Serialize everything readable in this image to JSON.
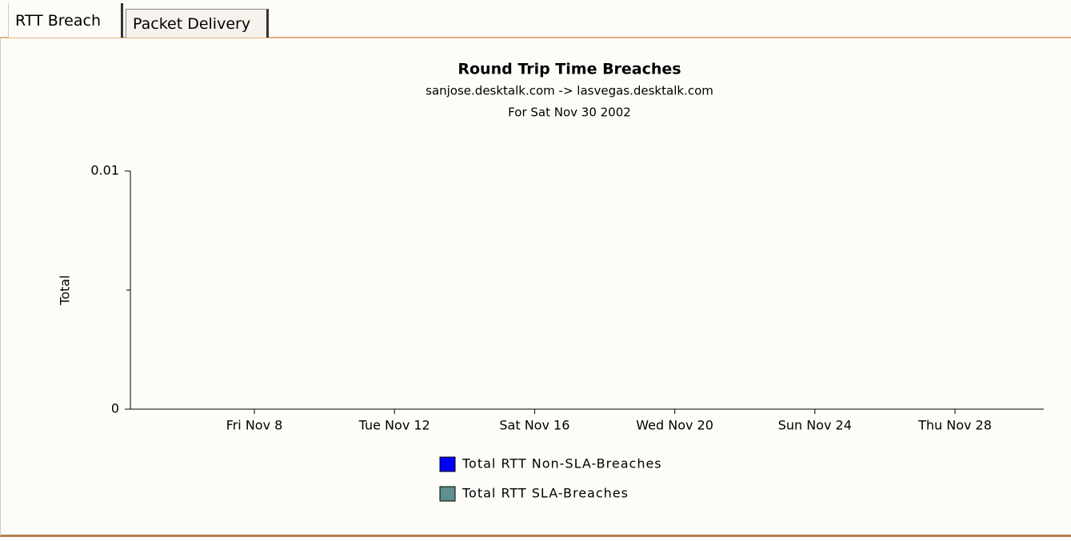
{
  "tabs": [
    "RTT Breach",
    "Packet Delivery"
  ],
  "chart_data": {
    "type": "bar",
    "stacked": true,
    "title": "Round Trip Time Breaches",
    "subtitle": [
      "sanjose.desktalk.com -> lasvegas.desktalk.com",
      "For Sat Nov 30 2002"
    ],
    "ylabel": "Total",
    "categories": [
      "Fri Nov 8",
      "Tue Nov 12",
      "Sat Nov 16",
      "Wed Nov 20",
      "Sun Nov 24",
      "Thu Nov 28"
    ],
    "series": [
      {
        "name": "Total RTT Non-SLA-Breaches",
        "color": "#0000ff",
        "values": [
          null,
          null,
          null,
          null,
          null,
          null
        ]
      },
      {
        "name": "Total RTT SLA-Breaches",
        "color": "#5f8f8f",
        "values": [
          null,
          null,
          null,
          null,
          null,
          null
        ]
      }
    ],
    "ylim": [
      0,
      0.01
    ],
    "yticks": [
      0,
      0.01
    ],
    "yminorticks": [
      0.005
    ],
    "grid": false
  }
}
